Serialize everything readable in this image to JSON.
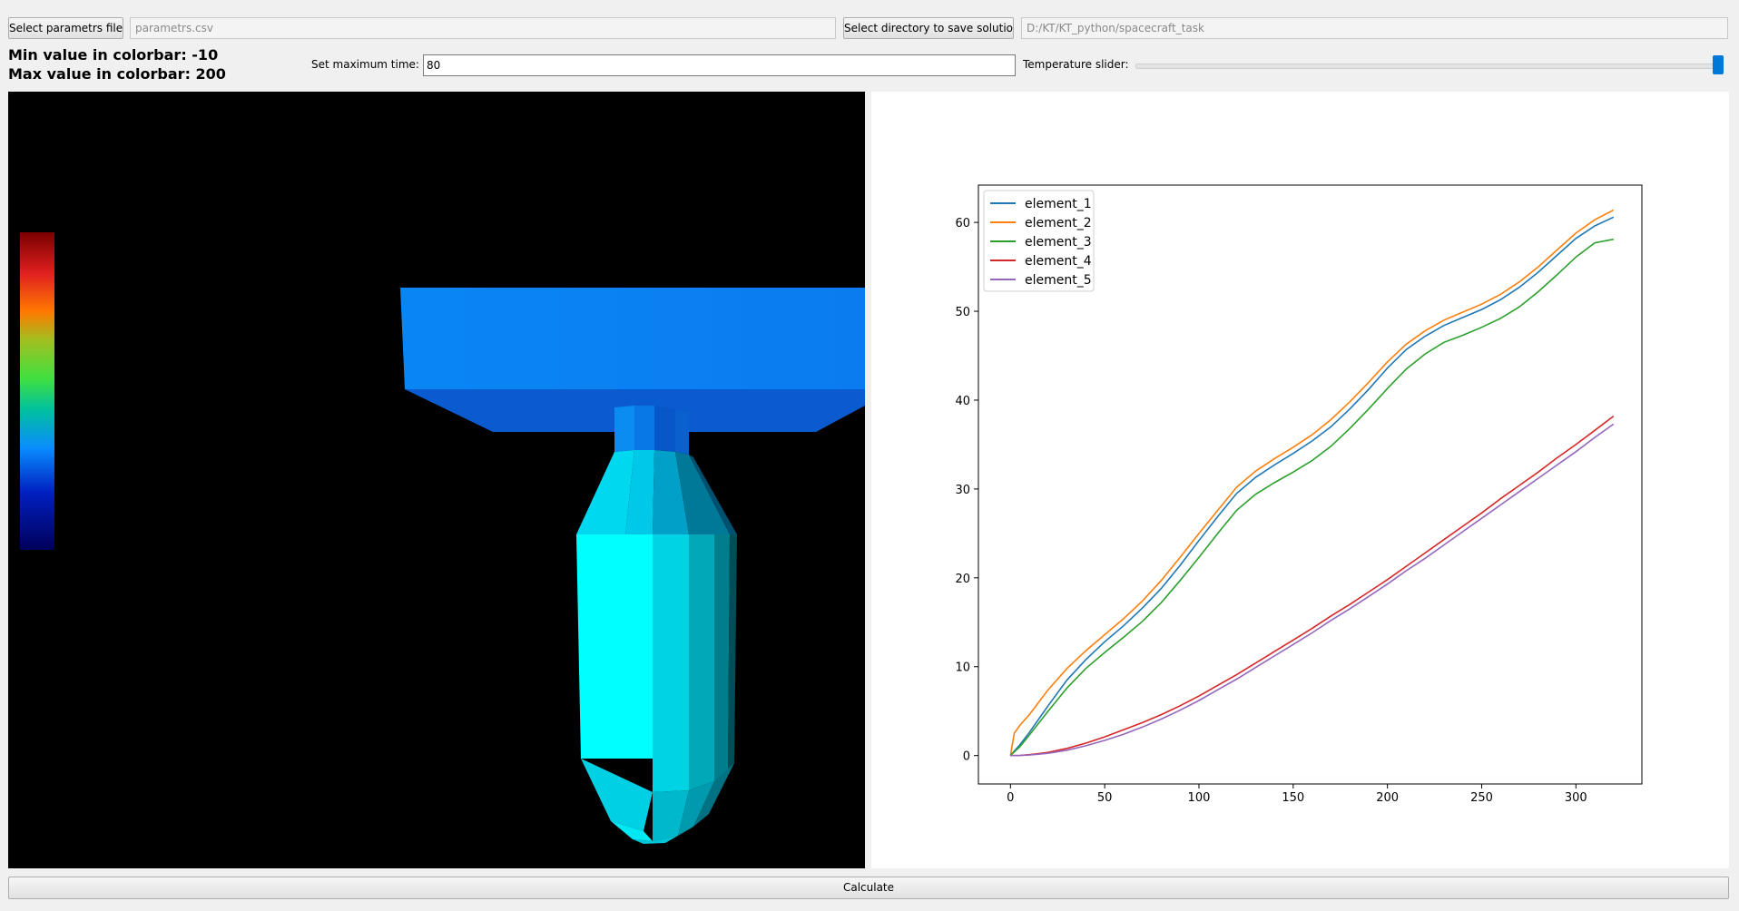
{
  "toolbar": {
    "select_params_label": "Select parametrs file",
    "params_path": "parametrs.csv",
    "select_dir_label": "Select directory to save solution",
    "dir_path": "D:/KT/KT_python/spacecraft_task"
  },
  "info": {
    "min_label": "Min value in colorbar: -10",
    "max_label": "Max value in colorbar: 200"
  },
  "controls": {
    "max_time_label": "Set maximum time:",
    "max_time_value": "80",
    "temp_slider_label": "Temperature slider:",
    "temp_slider_fraction": 1.0
  },
  "calculate_label": "Calculate",
  "colors": {
    "accent": "#0078d7",
    "viewport_bg": "#000000",
    "top_plate": "#0a82ff",
    "body_main": "#00ffff"
  },
  "chart_data": {
    "type": "line",
    "title": "",
    "xlabel": "",
    "ylabel": "",
    "xlim": [
      -17,
      335
    ],
    "ylim": [
      -3.2,
      64.2
    ],
    "x_ticks": [
      0,
      50,
      100,
      150,
      200,
      250,
      300
    ],
    "y_ticks": [
      0,
      10,
      20,
      30,
      40,
      50,
      60
    ],
    "grid": false,
    "legend_placement": "top-left",
    "x": [
      0,
      2,
      5,
      10,
      20,
      30,
      40,
      50,
      60,
      70,
      80,
      90,
      100,
      110,
      120,
      130,
      140,
      150,
      160,
      170,
      180,
      190,
      200,
      210,
      220,
      230,
      240,
      250,
      260,
      270,
      280,
      290,
      300,
      310,
      320
    ],
    "series": [
      {
        "name": "element_1",
        "color": "#1f77b4",
        "values": [
          0,
          0.5,
          1.2,
          2.6,
          5.6,
          8.5,
          10.8,
          12.8,
          14.6,
          16.6,
          18.8,
          21.4,
          24.2,
          26.9,
          29.5,
          31.3,
          32.7,
          34.0,
          35.4,
          37.0,
          39.0,
          41.2,
          43.6,
          45.7,
          47.2,
          48.4,
          49.3,
          50.2,
          51.3,
          52.7,
          54.4,
          56.3,
          58.2,
          59.6,
          60.6
        ]
      },
      {
        "name": "element_2",
        "color": "#ff7f0e",
        "values": [
          0,
          2.5,
          3.4,
          4.6,
          7.4,
          9.8,
          11.8,
          13.6,
          15.4,
          17.4,
          19.7,
          22.3,
          25.0,
          27.6,
          30.2,
          32.0,
          33.4,
          34.7,
          36.1,
          37.8,
          39.8,
          42.0,
          44.3,
          46.3,
          47.8,
          49.0,
          49.9,
          50.8,
          51.9,
          53.3,
          55.0,
          56.9,
          58.8,
          60.3,
          61.4
        ]
      },
      {
        "name": "element_3",
        "color": "#2ca02c",
        "values": [
          0,
          0.4,
          1.0,
          2.3,
          5.0,
          7.6,
          9.8,
          11.6,
          13.3,
          15.1,
          17.2,
          19.7,
          22.3,
          25.0,
          27.6,
          29.4,
          30.7,
          31.9,
          33.2,
          34.8,
          36.8,
          39.0,
          41.3,
          43.5,
          45.2,
          46.5,
          47.3,
          48.2,
          49.2,
          50.5,
          52.2,
          54.1,
          56.1,
          57.7,
          58.1
        ]
      },
      {
        "name": "element_4",
        "color": "#d62728",
        "values": [
          0,
          0,
          0.02,
          0.1,
          0.35,
          0.8,
          1.4,
          2.1,
          2.9,
          3.7,
          4.6,
          5.6,
          6.7,
          7.9,
          9.1,
          10.4,
          11.7,
          13.0,
          14.3,
          15.7,
          17.0,
          18.4,
          19.8,
          21.3,
          22.8,
          24.3,
          25.8,
          27.3,
          28.9,
          30.4,
          31.9,
          33.5,
          35.0,
          36.6,
          38.2
        ]
      },
      {
        "name": "element_5",
        "color": "#9467bd",
        "values": [
          0,
          0,
          0.01,
          0.06,
          0.25,
          0.6,
          1.1,
          1.7,
          2.4,
          3.2,
          4.1,
          5.1,
          6.2,
          7.4,
          8.6,
          9.9,
          11.2,
          12.5,
          13.8,
          15.2,
          16.5,
          17.9,
          19.3,
          20.8,
          22.2,
          23.7,
          25.2,
          26.7,
          28.2,
          29.7,
          31.2,
          32.7,
          34.2,
          35.8,
          37.3
        ]
      }
    ]
  }
}
